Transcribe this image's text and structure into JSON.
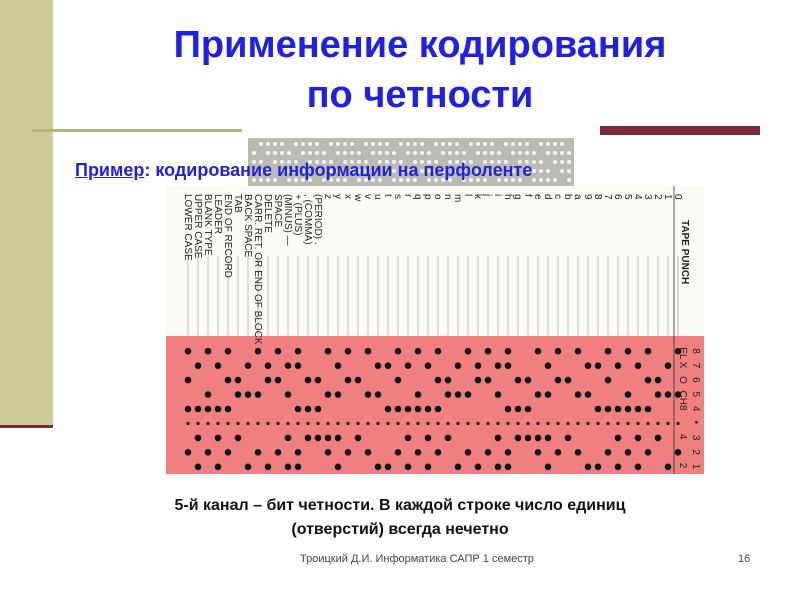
{
  "slide": {
    "title_line1": "Применение кодирования",
    "title_line2": "по четности",
    "subtitle_prefix": "Пример",
    "subtitle_rest": ": кодирование информации на перфоленте",
    "caption_line1": "5-й канал – бит четности. В каждой строке число единиц",
    "caption_line2": "(отверстий) всегда нечетно",
    "footer": "Троицкий Д.И. Информатика САПР 1 семестр",
    "page_number": "16"
  },
  "tape": {
    "header": "TAPE PUNCH",
    "channel_labels": [
      "EL",
      "X",
      "O",
      "CH",
      "8",
      "",
      "4",
      "",
      "2",
      "1"
    ],
    "right_labels": [
      "8",
      "7",
      "6",
      "5",
      "4",
      "•",
      "3",
      "2",
      "1"
    ],
    "codes": [
      "0",
      "1",
      "2",
      "3",
      "4",
      "5",
      "6",
      "7",
      "8",
      "9",
      "a",
      "b",
      "c",
      "d",
      "e",
      "f",
      "g",
      "h",
      "i",
      "j",
      "k",
      "l",
      "m",
      "n",
      "o",
      "p",
      "q",
      "r",
      "s",
      "t",
      "u",
      "v",
      "w",
      "x",
      "y",
      "z",
      "(PERIOD) .",
      ", (COMMA)",
      "+ (PLUS)",
      "(MINUS) —",
      "SPACE",
      "DELETE",
      "CARR. RET. OR END OF BLOCK",
      "BACK SPACE",
      "TAB",
      "END OF RECORD",
      "LEADER",
      "BLANK TYPE",
      "UPPER CASE",
      "LOWER CASE"
    ]
  },
  "colors": {
    "title": "#1f1fe6",
    "side_bar": "#cccc99",
    "accent": "#7b2a3d",
    "tape_pink": "#f08080"
  }
}
